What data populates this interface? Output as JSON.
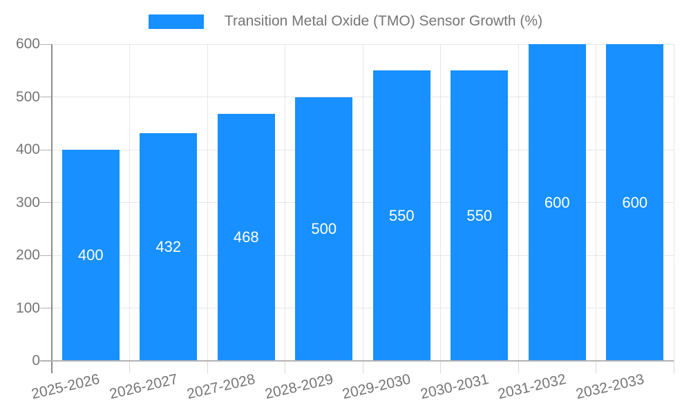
{
  "chart_data": {
    "type": "bar",
    "title": "Transition Metal Oxide (TMO) Sensor Growth (%)",
    "categories": [
      "2025-2026",
      "2026-2027",
      "2027-2028",
      "2028-2029",
      "2029-2030",
      "2030-2031",
      "2031-2032",
      "2032-2033"
    ],
    "values": [
      400,
      432,
      468,
      500,
      550,
      550,
      600,
      600
    ],
    "bar_labels": [
      "400",
      "432",
      "468",
      "500",
      "550",
      "550",
      "600",
      "600"
    ],
    "xlabel": "",
    "ylabel": "",
    "ylim": [
      0,
      600
    ],
    "yticks": [
      0,
      100,
      200,
      300,
      400,
      500,
      600
    ],
    "ytick_labels": [
      "0",
      "100",
      "200",
      "300",
      "400",
      "500",
      "600"
    ],
    "grid": true,
    "legend_position": "top-center",
    "bar_value_labels": "inside-center",
    "colors": {
      "bar": "#1890ff",
      "axis_text": "#757575",
      "gridline": "#e6e6e6",
      "below_axis_tick": "#d9d9d9",
      "y_tick": "#b0b0b0",
      "axis_line": "#8a8a8a",
      "baseline": "#b3b3b3",
      "bar_label": "#ffffff",
      "background": "#ffffff"
    }
  }
}
